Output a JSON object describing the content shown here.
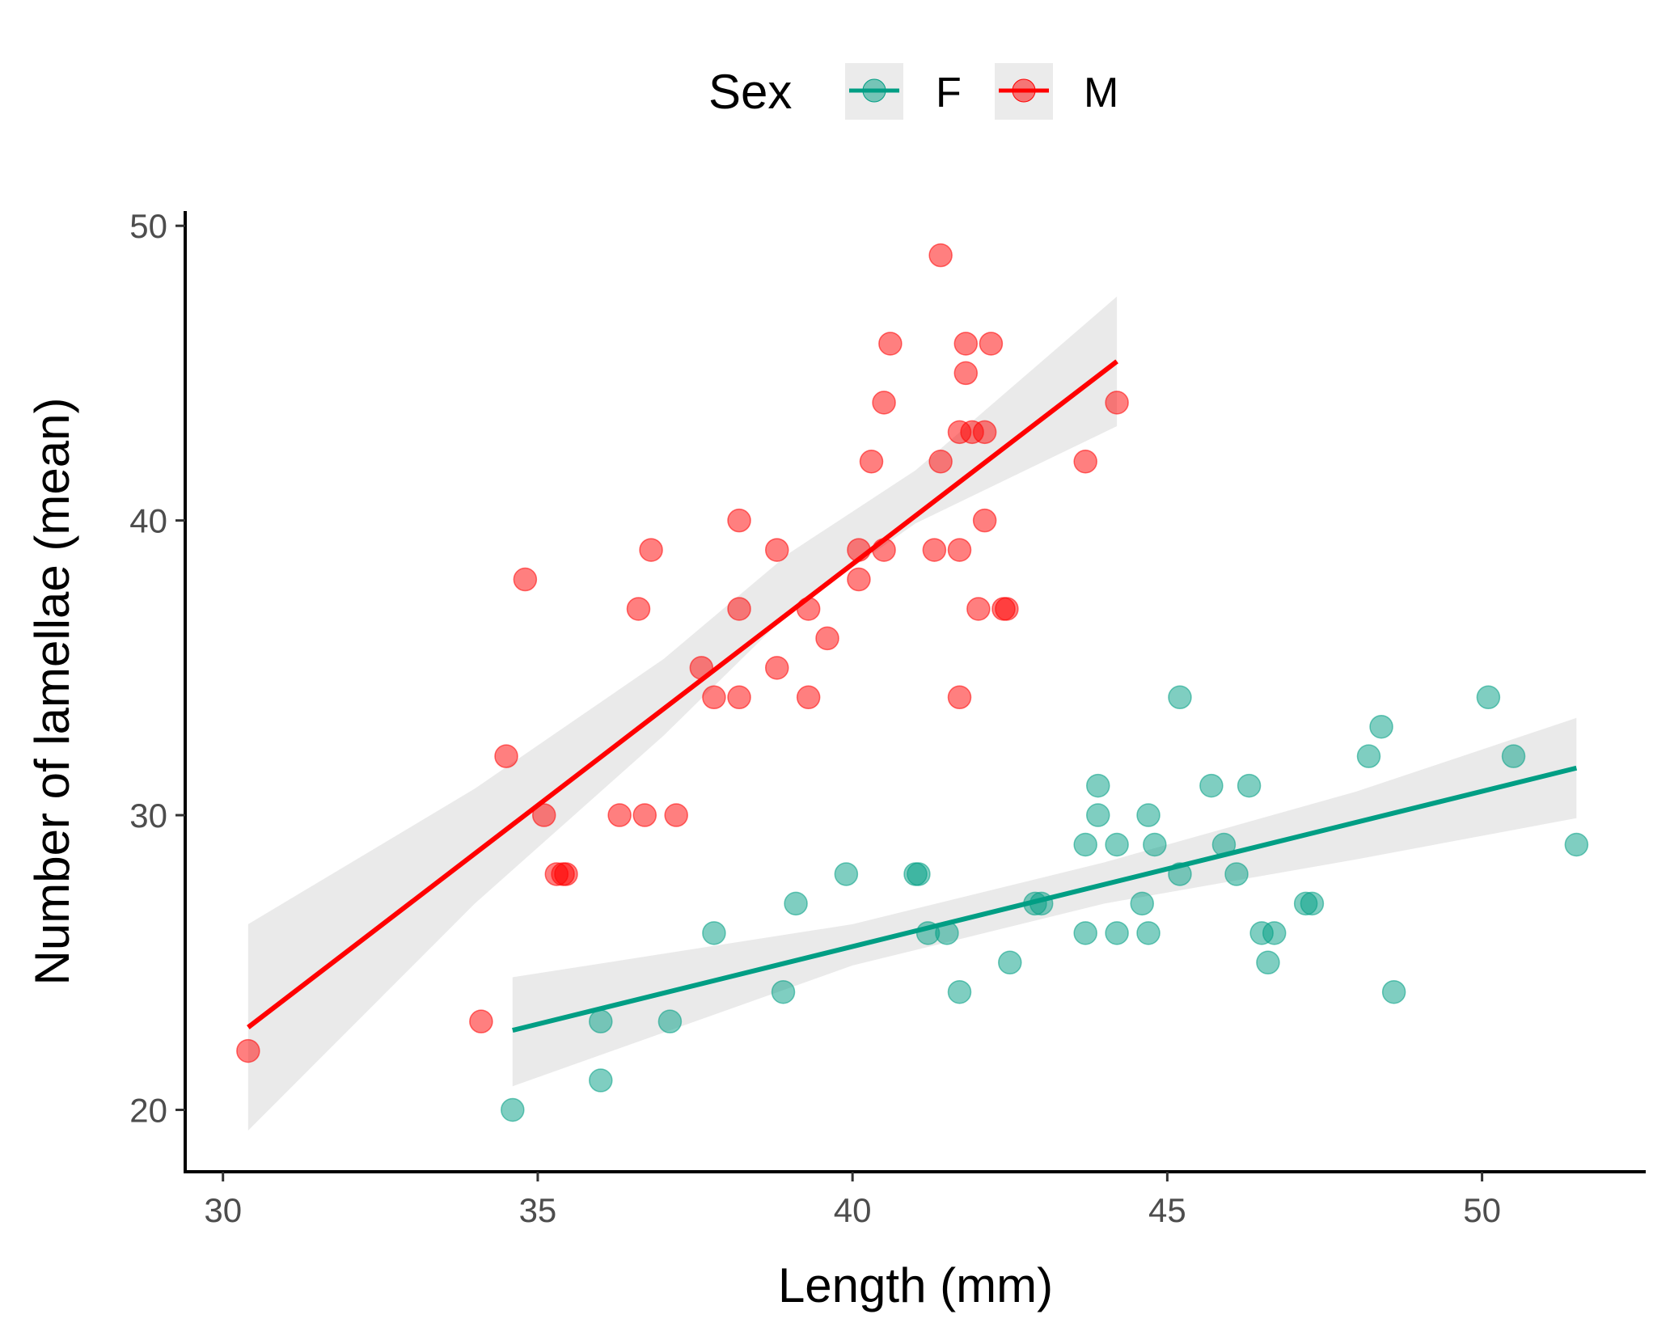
{
  "chart_data": {
    "type": "scatter",
    "xlabel": "Length (mm)",
    "ylabel": "Number of lamellae (mean)",
    "xlim": [
      29.4,
      52.6
    ],
    "ylim": [
      17.9,
      50.5
    ],
    "x_ticks": [
      30,
      35,
      40,
      45,
      50
    ],
    "y_ticks": [
      20,
      30,
      40,
      50
    ],
    "grid": false,
    "legend": {
      "title": "Sex",
      "position": "top"
    },
    "series": [
      {
        "name": "F",
        "color": "#009E84",
        "points": [
          [
            34.6,
            20
          ],
          [
            36.0,
            21
          ],
          [
            36.0,
            23
          ],
          [
            37.1,
            23
          ],
          [
            37.8,
            26
          ],
          [
            38.9,
            24
          ],
          [
            39.1,
            27
          ],
          [
            39.9,
            28
          ],
          [
            41.0,
            28
          ],
          [
            41.05,
            28
          ],
          [
            41.2,
            26
          ],
          [
            41.5,
            26
          ],
          [
            41.7,
            24
          ],
          [
            42.5,
            25
          ],
          [
            42.9,
            27
          ],
          [
            43.0,
            27
          ],
          [
            43.7,
            26
          ],
          [
            43.7,
            29
          ],
          [
            43.9,
            31
          ],
          [
            43.9,
            30
          ],
          [
            44.2,
            29
          ],
          [
            44.2,
            26
          ],
          [
            44.6,
            27
          ],
          [
            44.7,
            30
          ],
          [
            44.7,
            26
          ],
          [
            44.8,
            29
          ],
          [
            45.2,
            34
          ],
          [
            45.2,
            28
          ],
          [
            45.7,
            31
          ],
          [
            45.9,
            29
          ],
          [
            46.1,
            28
          ],
          [
            46.3,
            31
          ],
          [
            46.5,
            26
          ],
          [
            46.7,
            26
          ],
          [
            46.6,
            25
          ],
          [
            47.2,
            27
          ],
          [
            47.3,
            27
          ],
          [
            48.2,
            32
          ],
          [
            48.4,
            33
          ],
          [
            48.6,
            24
          ],
          [
            50.1,
            34
          ],
          [
            50.5,
            32
          ],
          [
            51.5,
            29
          ]
        ],
        "trend": {
          "x": [
            34.6,
            51.5
          ],
          "y": [
            22.7,
            31.6
          ]
        },
        "ci_band": {
          "x": [
            34.6,
            40,
            44,
            48,
            51.5
          ],
          "lower": [
            20.8,
            24.9,
            27.0,
            28.5,
            29.9
          ],
          "upper": [
            24.5,
            26.3,
            28.4,
            30.8,
            33.3
          ]
        }
      },
      {
        "name": "M",
        "color": "#FF0000",
        "points": [
          [
            30.4,
            22
          ],
          [
            34.1,
            23
          ],
          [
            34.5,
            32
          ],
          [
            34.8,
            38
          ],
          [
            35.1,
            30
          ],
          [
            35.3,
            28
          ],
          [
            35.4,
            28
          ],
          [
            35.45,
            28
          ],
          [
            36.3,
            30
          ],
          [
            36.6,
            37
          ],
          [
            36.7,
            30
          ],
          [
            36.8,
            39
          ],
          [
            37.2,
            30
          ],
          [
            37.6,
            35
          ],
          [
            37.8,
            34
          ],
          [
            38.2,
            40
          ],
          [
            38.2,
            37
          ],
          [
            38.2,
            34
          ],
          [
            38.8,
            35
          ],
          [
            38.8,
            39
          ],
          [
            39.3,
            37
          ],
          [
            39.3,
            34
          ],
          [
            39.6,
            36
          ],
          [
            40.1,
            38
          ],
          [
            40.1,
            39
          ],
          [
            40.3,
            42
          ],
          [
            40.5,
            39
          ],
          [
            40.5,
            44
          ],
          [
            40.6,
            46
          ],
          [
            41.3,
            39
          ],
          [
            41.4,
            42
          ],
          [
            41.4,
            49
          ],
          [
            41.7,
            39
          ],
          [
            41.7,
            43
          ],
          [
            41.7,
            34
          ],
          [
            41.8,
            46
          ],
          [
            41.8,
            45
          ],
          [
            41.9,
            43
          ],
          [
            42.0,
            37
          ],
          [
            42.1,
            43
          ],
          [
            42.1,
            40
          ],
          [
            42.2,
            46
          ],
          [
            42.4,
            37
          ],
          [
            42.45,
            37
          ],
          [
            43.7,
            42
          ],
          [
            44.2,
            44
          ]
        ],
        "trend": {
          "x": [
            30.4,
            44.2
          ],
          "y": [
            22.8,
            45.4
          ]
        },
        "ci_band": {
          "x": [
            30.4,
            34,
            37,
            39,
            41,
            44.2
          ],
          "lower": [
            19.3,
            27.0,
            32.7,
            36.9,
            39.9,
            43.2
          ],
          "upper": [
            26.3,
            30.9,
            35.3,
            38.9,
            41.7,
            47.6
          ]
        }
      }
    ]
  }
}
